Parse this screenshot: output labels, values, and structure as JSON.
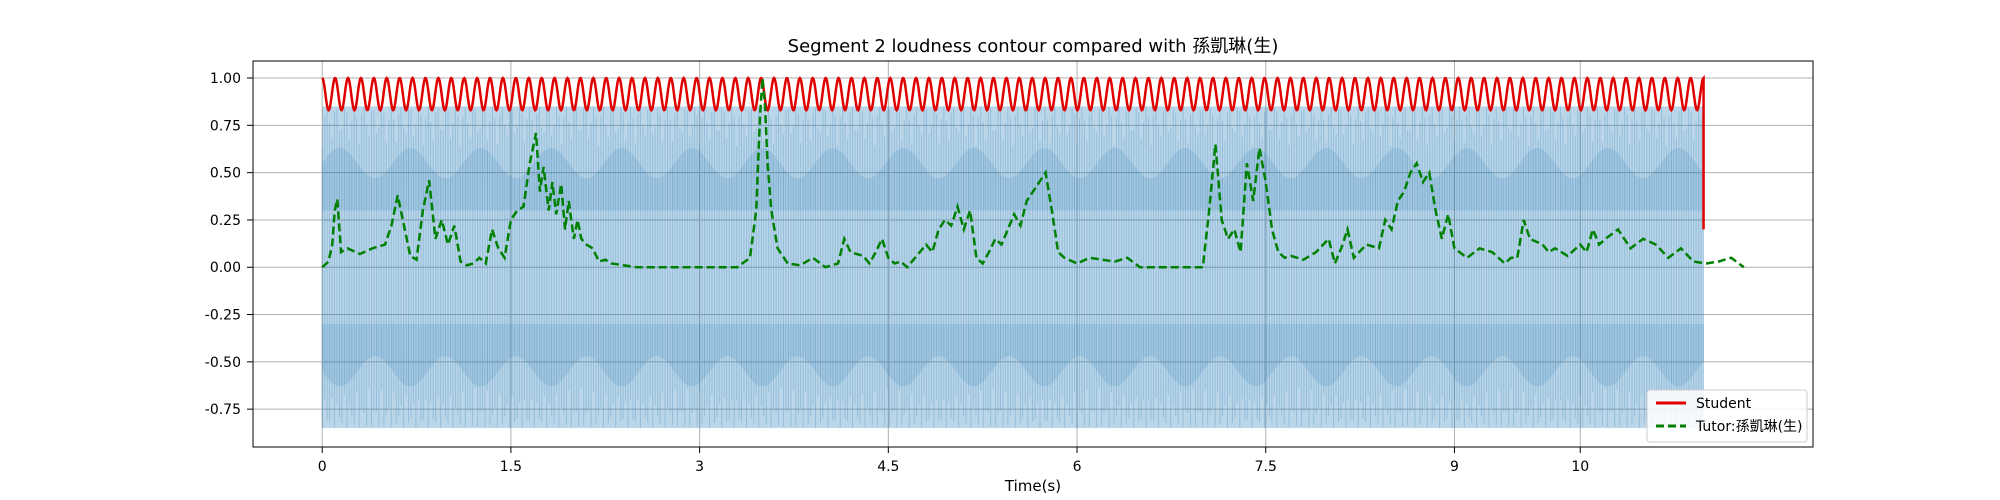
{
  "chart_data": {
    "type": "line",
    "title": "Segment 2 loudness contour compared with 孫凱琳(生)",
    "xlabel": "Time(s)",
    "ylabel": "",
    "xlim": [
      -0.55,
      11.85
    ],
    "ylim": [
      -0.95,
      1.09
    ],
    "grid": true,
    "legend_position": "lower-right",
    "x_ticks": [
      0,
      1.5,
      3,
      4.5,
      6,
      7.5,
      9,
      10
    ],
    "x_tick_labels": [
      "0",
      "1.5",
      "3",
      "4.5",
      "6",
      "7.5",
      "9",
      "10"
    ],
    "y_ticks": [
      1.0,
      0.75,
      0.5,
      0.25,
      0.0,
      -0.25,
      -0.5,
      -0.75
    ],
    "y_tick_labels": [
      "1.00",
      "0.75",
      "0.50",
      "0.25",
      "0.00",
      "-0.25",
      "-0.50",
      "-0.75"
    ],
    "waveform": {
      "x_range": [
        0,
        10.98
      ],
      "envelope": [
        -0.85,
        0.85
      ],
      "dense_band": [
        -0.3,
        0.3
      ],
      "color": "#1f77b4"
    },
    "series": [
      {
        "name": "Student",
        "style": "solid",
        "color": "#e00000",
        "x_range": [
          0,
          10.98
        ],
        "oscillation": {
          "min": 0.83,
          "max": 1.0,
          "cycles": 107
        },
        "end_point": {
          "x": 10.98,
          "y": 0.2
        }
      },
      {
        "name": "Tutor:孫凱琳(生)",
        "style": "dashed",
        "color": "#008000",
        "x": [
          0.0,
          0.05,
          0.08,
          0.1,
          0.12,
          0.15,
          0.2,
          0.3,
          0.4,
          0.5,
          0.55,
          0.6,
          0.7,
          0.75,
          0.8,
          0.85,
          0.9,
          0.95,
          1.0,
          1.05,
          1.1,
          1.15,
          1.2,
          1.25,
          1.3,
          1.35,
          1.4,
          1.45,
          1.5,
          1.55,
          1.6,
          1.65,
          1.7,
          1.73,
          1.76,
          1.8,
          1.83,
          1.86,
          1.9,
          1.93,
          1.96,
          2.0,
          2.03,
          2.06,
          2.1,
          2.15,
          2.2,
          2.25,
          2.3,
          2.4,
          2.5,
          2.6,
          2.8,
          3.0,
          3.2,
          3.3,
          3.4,
          3.45,
          3.48,
          3.5,
          3.52,
          3.54,
          3.57,
          3.62,
          3.7,
          3.8,
          3.9,
          4.0,
          4.1,
          4.15,
          4.2,
          4.3,
          4.35,
          4.4,
          4.45,
          4.5,
          4.55,
          4.6,
          4.65,
          4.7,
          4.8,
          4.85,
          4.9,
          4.95,
          5.0,
          5.05,
          5.1,
          5.15,
          5.2,
          5.25,
          5.3,
          5.35,
          5.4,
          5.45,
          5.5,
          5.55,
          5.6,
          5.65,
          5.7,
          5.75,
          5.8,
          5.85,
          5.9,
          6.0,
          6.1,
          6.2,
          6.3,
          6.4,
          6.5,
          6.6,
          6.8,
          7.0,
          7.05,
          7.1,
          7.15,
          7.2,
          7.25,
          7.3,
          7.35,
          7.4,
          7.45,
          7.5,
          7.55,
          7.6,
          7.65,
          7.7,
          7.8,
          7.9,
          8.0,
          8.05,
          8.1,
          8.15,
          8.2,
          8.3,
          8.4,
          8.45,
          8.5,
          8.55,
          8.6,
          8.65,
          8.7,
          8.75,
          8.8,
          8.85,
          8.9,
          8.95,
          9.0,
          9.1,
          9.2,
          9.3,
          9.4,
          9.45,
          9.5,
          9.55,
          9.6,
          9.7,
          9.75,
          9.8,
          9.9,
          10.0,
          10.05,
          10.1,
          10.15,
          10.2,
          10.3,
          10.4,
          10.5,
          10.6,
          10.7,
          10.8,
          10.9,
          11.0,
          11.1,
          11.2,
          11.3
        ],
        "y": [
          0.0,
          0.03,
          0.12,
          0.3,
          0.36,
          0.08,
          0.1,
          0.07,
          0.1,
          0.12,
          0.22,
          0.38,
          0.06,
          0.04,
          0.3,
          0.46,
          0.15,
          0.25,
          0.12,
          0.22,
          0.03,
          0.01,
          0.02,
          0.05,
          0.02,
          0.2,
          0.1,
          0.05,
          0.25,
          0.3,
          0.32,
          0.55,
          0.71,
          0.4,
          0.53,
          0.3,
          0.45,
          0.28,
          0.44,
          0.2,
          0.35,
          0.15,
          0.25,
          0.15,
          0.12,
          0.1,
          0.03,
          0.04,
          0.02,
          0.01,
          0.0,
          0.0,
          0.0,
          0.0,
          0.0,
          0.0,
          0.05,
          0.3,
          0.8,
          1.0,
          0.85,
          0.55,
          0.3,
          0.1,
          0.02,
          0.01,
          0.05,
          0.0,
          0.02,
          0.15,
          0.08,
          0.06,
          0.02,
          0.08,
          0.15,
          0.05,
          0.02,
          0.03,
          0.0,
          0.04,
          0.12,
          0.08,
          0.2,
          0.25,
          0.22,
          0.32,
          0.2,
          0.3,
          0.05,
          0.02,
          0.08,
          0.15,
          0.12,
          0.2,
          0.28,
          0.22,
          0.35,
          0.4,
          0.45,
          0.5,
          0.3,
          0.08,
          0.05,
          0.02,
          0.05,
          0.04,
          0.03,
          0.05,
          0.0,
          0.0,
          0.0,
          0.0,
          0.3,
          0.65,
          0.25,
          0.15,
          0.2,
          0.08,
          0.55,
          0.35,
          0.63,
          0.45,
          0.2,
          0.08,
          0.05,
          0.06,
          0.04,
          0.08,
          0.15,
          0.02,
          0.1,
          0.2,
          0.05,
          0.12,
          0.1,
          0.25,
          0.2,
          0.35,
          0.4,
          0.5,
          0.55,
          0.45,
          0.5,
          0.3,
          0.15,
          0.28,
          0.1,
          0.05,
          0.1,
          0.08,
          0.02,
          0.05,
          0.05,
          0.25,
          0.15,
          0.12,
          0.08,
          0.1,
          0.06,
          0.12,
          0.08,
          0.2,
          0.12,
          0.15,
          0.2,
          0.1,
          0.15,
          0.12,
          0.05,
          0.1,
          0.03,
          0.02,
          0.03,
          0.05,
          0.0
        ]
      }
    ]
  }
}
